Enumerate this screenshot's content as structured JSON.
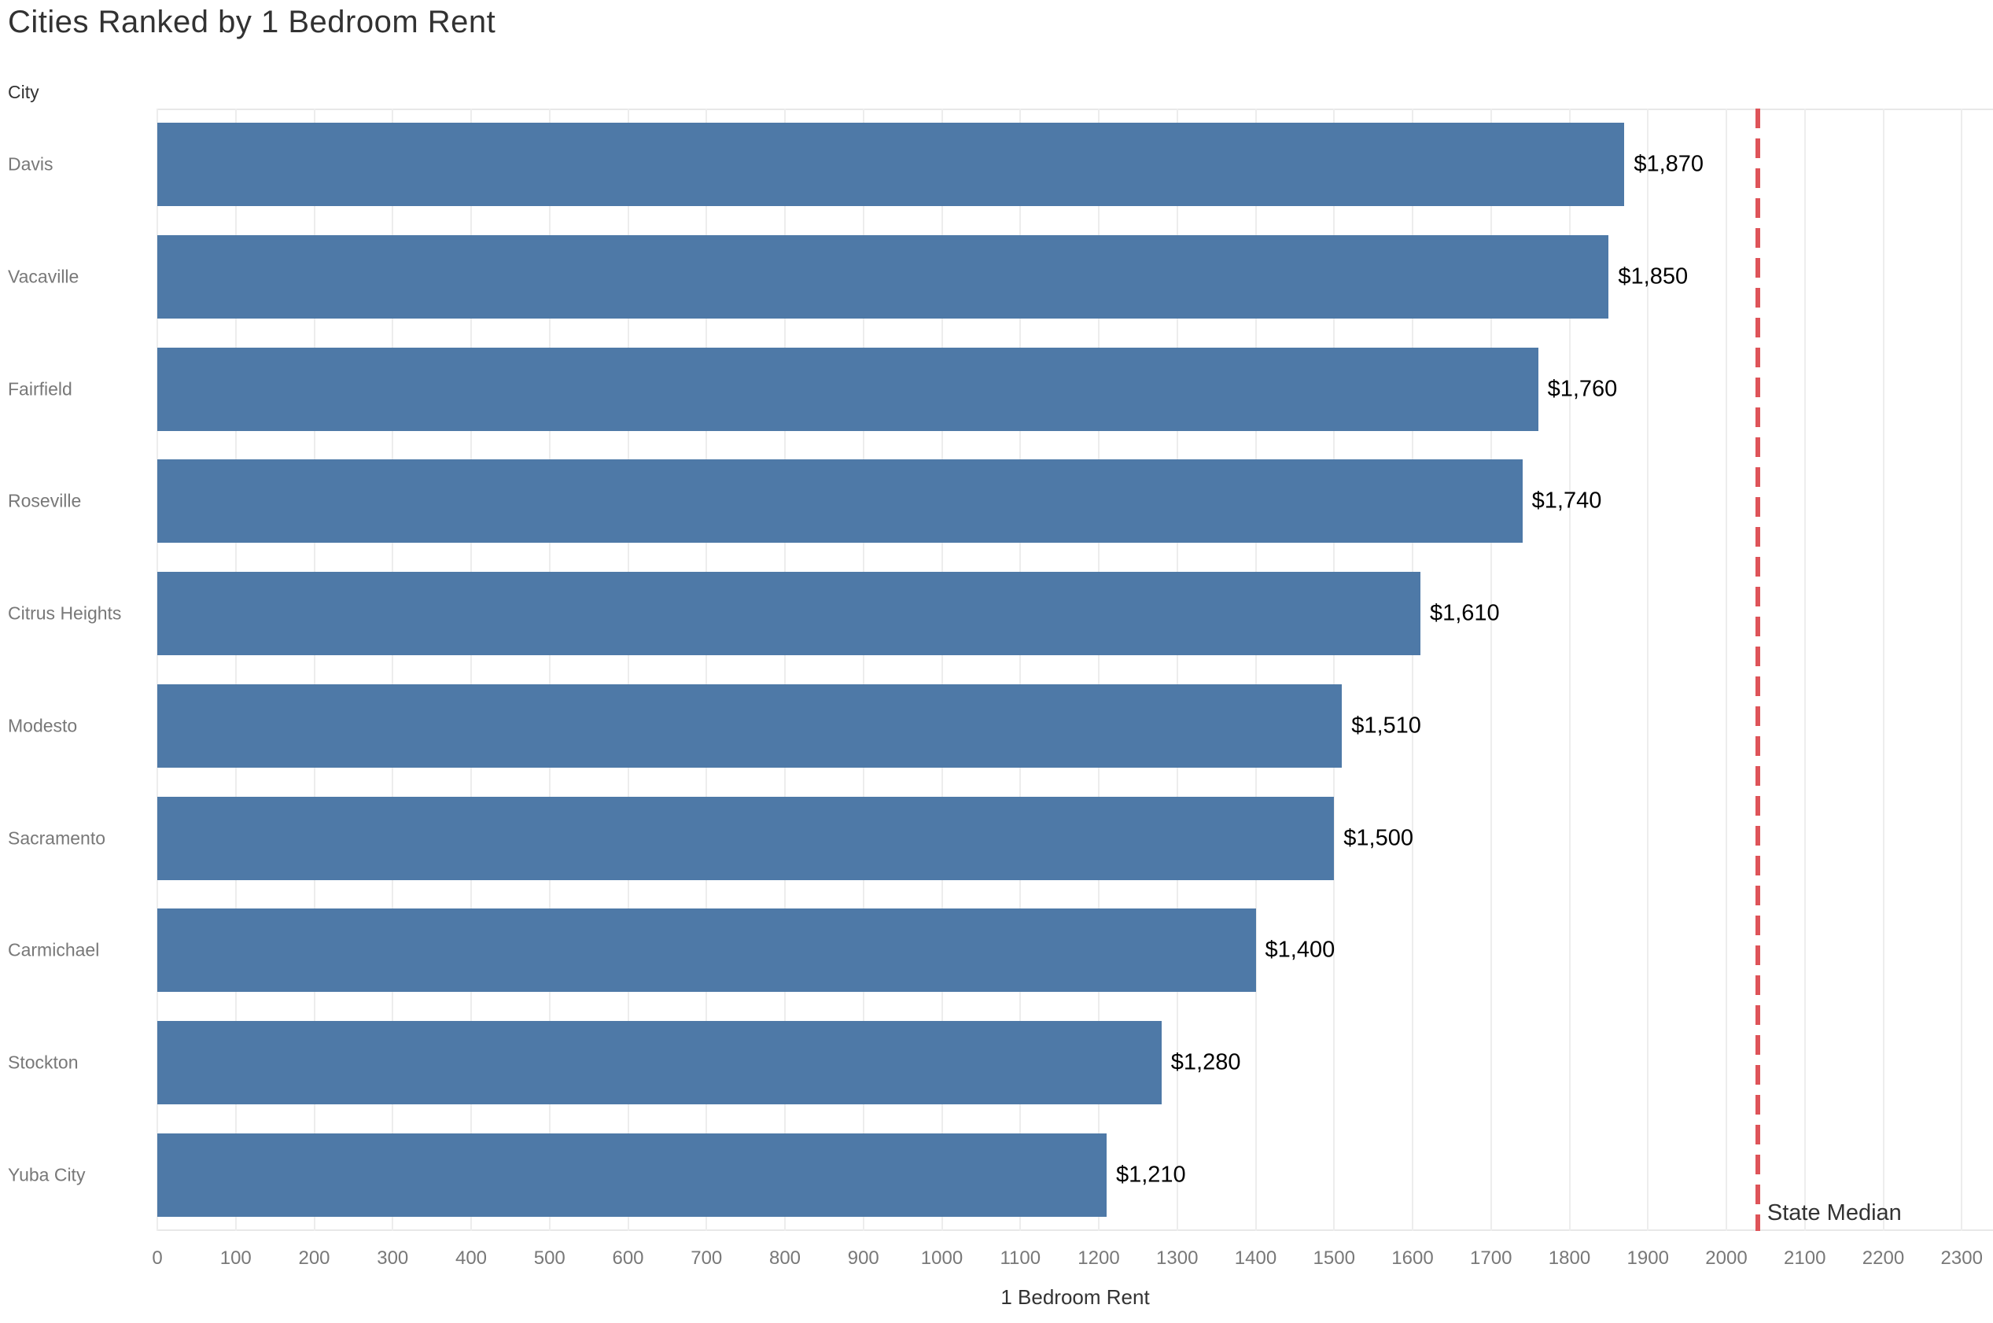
{
  "colors": {
    "bar": "#4e79a7",
    "reference_line": "#de5459",
    "gridline": "#ededed",
    "axis_border": "#e8e8e8",
    "title_text": "#323232",
    "category_text": "#787878",
    "tick_text": "#787878",
    "value_label_text": "#000000"
  },
  "chart_data": {
    "type": "bar",
    "orientation": "horizontal",
    "title": "Cities Ranked by 1 Bedroom Rent",
    "xlabel": "1 Bedroom Rent",
    "ylabel": "City",
    "categories": [
      "Davis",
      "Vacaville",
      "Fairfield",
      "Roseville",
      "Citrus Heights",
      "Modesto",
      "Sacramento",
      "Carmichael",
      "Stockton",
      "Yuba City"
    ],
    "values": [
      1870,
      1850,
      1760,
      1740,
      1610,
      1510,
      1500,
      1400,
      1280,
      1210
    ],
    "value_labels": [
      "$1,870",
      "$1,850",
      "$1,760",
      "$1,740",
      "$1,610",
      "$1,510",
      "$1,500",
      "$1,400",
      "$1,280",
      "$1,210"
    ],
    "x_ticks": [
      0,
      100,
      200,
      300,
      400,
      500,
      600,
      700,
      800,
      900,
      1000,
      1100,
      1200,
      1300,
      1400,
      1500,
      1600,
      1700,
      1800,
      1900,
      2000,
      2100,
      2200,
      2300
    ],
    "xlim": [
      0,
      2340
    ],
    "grid": true,
    "legend": "none",
    "reference_line": {
      "label": "State Median",
      "value": 2040,
      "style": "dashed"
    }
  }
}
